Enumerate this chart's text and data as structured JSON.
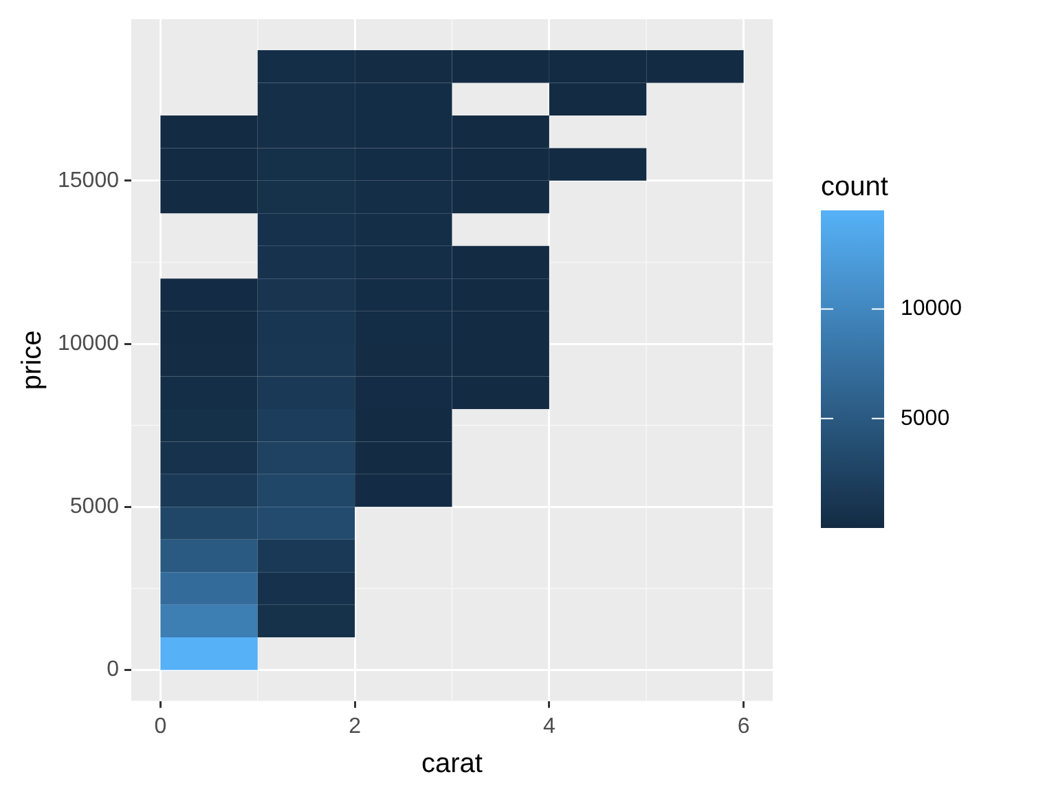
{
  "chart_data": {
    "type": "heatmap",
    "xlabel": "carat",
    "ylabel": "price",
    "clabel": "count",
    "x": [
      0.5,
      1.5,
      2.5,
      3.5,
      4.5,
      5.5
    ],
    "y": [
      18500,
      17500,
      16500,
      15500,
      14500,
      13500,
      12500,
      11500,
      10500,
      9500,
      8500,
      7500,
      6500,
      5500,
      4500,
      3500,
      2500,
      1500,
      500
    ],
    "xlim": [
      -0.3,
      6.3
    ],
    "xticks": [
      0,
      2,
      4,
      6
    ],
    "ylim": [
      -950,
      19950
    ],
    "yticks": [
      0,
      5000,
      10000,
      15000
    ],
    "grid": true,
    "clim": [
      1,
      14500
    ],
    "cticks": [
      5000,
      10000
    ],
    "cells": [
      [
        null,
        300,
        200,
        10,
        2,
        1
      ],
      [
        null,
        400,
        250,
        null,
        2,
        null
      ],
      [
        10,
        450,
        250,
        10,
        null,
        null
      ],
      [
        10,
        500,
        250,
        10,
        2,
        null
      ],
      [
        10,
        600,
        300,
        10,
        null,
        null
      ],
      [
        null,
        700,
        300,
        null,
        null,
        null
      ],
      [
        null,
        800,
        300,
        10,
        null,
        null
      ],
      [
        50,
        1000,
        250,
        10,
        null,
        null
      ],
      [
        100,
        1100,
        250,
        10,
        null,
        null
      ],
      [
        200,
        1300,
        200,
        10,
        null,
        null
      ],
      [
        300,
        1500,
        150,
        10,
        null,
        null
      ],
      [
        500,
        2000,
        100,
        null,
        null,
        null
      ],
      [
        800,
        2500,
        100,
        null,
        null,
        null
      ],
      [
        1500,
        3000,
        50,
        null,
        null,
        null
      ],
      [
        3000,
        3500,
        null,
        null,
        null,
        null
      ],
      [
        5000,
        1500,
        null,
        null,
        null,
        null
      ],
      [
        7000,
        700,
        null,
        null,
        null,
        null
      ],
      [
        9000,
        600,
        null,
        null,
        null,
        null
      ],
      [
        14500,
        null,
        null,
        null,
        null,
        null
      ]
    ]
  }
}
